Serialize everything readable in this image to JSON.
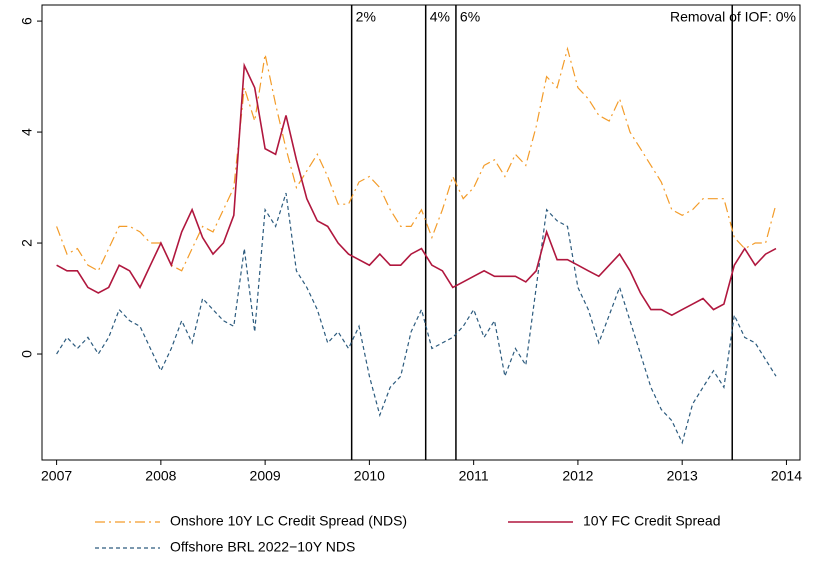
{
  "chart_data": {
    "type": "line",
    "x": [
      2007.0,
      2007.1,
      2007.2,
      2007.3,
      2007.4,
      2007.5,
      2007.6,
      2007.7,
      2007.8,
      2007.9,
      2008.0,
      2008.1,
      2008.2,
      2008.3,
      2008.4,
      2008.5,
      2008.6,
      2008.7,
      2008.8,
      2008.9,
      2009.0,
      2009.1,
      2009.2,
      2009.3,
      2009.4,
      2009.5,
      2009.6,
      2009.7,
      2009.8,
      2009.9,
      2010.0,
      2010.1,
      2010.2,
      2010.3,
      2010.4,
      2010.5,
      2010.6,
      2010.7,
      2010.8,
      2010.9,
      2011.0,
      2011.1,
      2011.2,
      2011.3,
      2011.4,
      2011.5,
      2011.6,
      2011.7,
      2011.8,
      2011.9,
      2012.0,
      2012.1,
      2012.2,
      2012.3,
      2012.4,
      2012.5,
      2012.6,
      2012.7,
      2012.8,
      2012.9,
      2013.0,
      2013.1,
      2013.2,
      2013.3,
      2013.4,
      2013.5,
      2013.6,
      2013.7,
      2013.8,
      2013.9
    ],
    "series": [
      {
        "name": "Onshore 10Y LC Credit Spread (NDS)",
        "color": "#f39c2a",
        "dash": "dashdot",
        "values": [
          2.3,
          1.8,
          1.9,
          1.6,
          1.5,
          1.9,
          2.3,
          2.3,
          2.2,
          2.0,
          2.0,
          1.6,
          1.5,
          1.9,
          2.3,
          2.2,
          2.6,
          3.0,
          4.8,
          4.2,
          5.4,
          4.5,
          3.7,
          3.0,
          3.3,
          3.6,
          3.2,
          2.7,
          2.7,
          3.1,
          3.2,
          3.0,
          2.6,
          2.3,
          2.3,
          2.6,
          2.1,
          2.6,
          3.2,
          2.8,
          3.0,
          3.4,
          3.5,
          3.2,
          3.6,
          3.4,
          4.1,
          5.0,
          4.8,
          5.5,
          4.8,
          4.6,
          4.3,
          4.2,
          4.6,
          4.0,
          3.7,
          3.4,
          3.1,
          2.6,
          2.5,
          2.6,
          2.8,
          2.8,
          2.8,
          2.1,
          1.9,
          2.0,
          2.0,
          2.7
        ]
      },
      {
        "name": "10Y FC Credit Spread",
        "color": "#b0173e",
        "dash": "solid",
        "values": [
          1.6,
          1.5,
          1.5,
          1.2,
          1.1,
          1.2,
          1.6,
          1.5,
          1.2,
          1.6,
          2.0,
          1.6,
          2.2,
          2.6,
          2.1,
          1.8,
          2.0,
          2.5,
          5.2,
          4.8,
          3.7,
          3.6,
          4.3,
          3.5,
          2.8,
          2.4,
          2.3,
          2.0,
          1.8,
          1.7,
          1.6,
          1.8,
          1.6,
          1.6,
          1.8,
          1.9,
          1.6,
          1.5,
          1.2,
          1.3,
          1.4,
          1.5,
          1.4,
          1.4,
          1.4,
          1.3,
          1.5,
          2.2,
          1.7,
          1.7,
          1.6,
          1.5,
          1.4,
          1.6,
          1.8,
          1.5,
          1.1,
          0.8,
          0.8,
          0.7,
          0.8,
          0.9,
          1.0,
          0.8,
          0.9,
          1.6,
          1.9,
          1.6,
          1.8,
          1.9
        ]
      },
      {
        "name": "Offshore BRL 2022−10Y NDS",
        "color": "#2c5b7e",
        "dash": "dash",
        "values": [
          0.0,
          0.3,
          0.1,
          0.3,
          0.0,
          0.3,
          0.8,
          0.6,
          0.5,
          0.1,
          -0.3,
          0.1,
          0.6,
          0.2,
          1.0,
          0.8,
          0.6,
          0.5,
          1.9,
          0.4,
          2.6,
          2.3,
          2.9,
          1.5,
          1.2,
          0.8,
          0.2,
          0.4,
          0.1,
          0.5,
          -0.4,
          -1.1,
          -0.6,
          -0.4,
          0.4,
          0.8,
          0.1,
          0.2,
          0.3,
          0.5,
          0.8,
          0.3,
          0.6,
          -0.4,
          0.1,
          -0.2,
          1.2,
          2.6,
          2.4,
          2.3,
          1.2,
          0.8,
          0.2,
          0.7,
          1.2,
          0.6,
          0.0,
          -0.6,
          -1.0,
          -1.2,
          -1.6,
          -0.9,
          -0.6,
          -0.3,
          -0.6,
          0.7,
          0.3,
          0.2,
          -0.1,
          -0.4
        ]
      }
    ],
    "annotations": [
      {
        "x": 2009.83,
        "label": "2%"
      },
      {
        "x": 2010.54,
        "label": "4%"
      },
      {
        "x": 2010.83,
        "label": "6%"
      },
      {
        "x": 2013.48,
        "label": "Removal of IOF: 0%"
      }
    ],
    "xlim": [
      2006.86,
      2014.13
    ],
    "xticks": [
      2007,
      2008,
      2009,
      2010,
      2011,
      2012,
      2013,
      2014
    ],
    "ylim": [
      -1.91,
      6.29
    ],
    "yticks": [
      0,
      2,
      4,
      6
    ],
    "grid": false
  }
}
